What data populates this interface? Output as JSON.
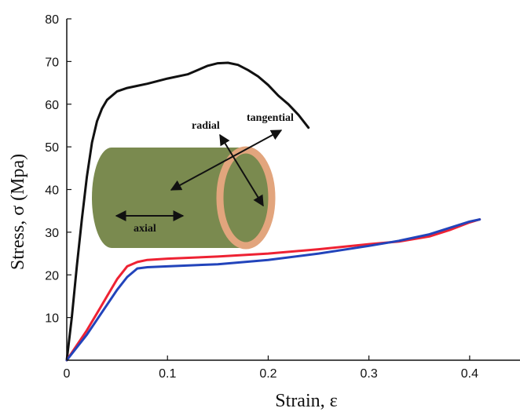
{
  "chart_data": {
    "type": "line",
    "xlabel": "Strain, ε",
    "ylabel": "Stress, σ (Mpa)",
    "xlim": [
      0,
      0.45
    ],
    "ylim": [
      0,
      80
    ],
    "x_ticks": [
      "0",
      "0.1",
      "0.2",
      "0.3",
      "0.4"
    ],
    "x_tick_values": [
      0,
      0.1,
      0.2,
      0.3,
      0.4
    ],
    "y_ticks": [
      "10",
      "20",
      "30",
      "40",
      "50",
      "60",
      "70",
      "80"
    ],
    "y_tick_values": [
      10,
      20,
      30,
      40,
      50,
      60,
      70,
      80
    ],
    "grid": false,
    "legend": "none",
    "series": [
      {
        "color": "#111111",
        "points": [
          [
            0,
            0
          ],
          [
            0.005,
            10
          ],
          [
            0.01,
            22
          ],
          [
            0.015,
            33
          ],
          [
            0.02,
            43
          ],
          [
            0.025,
            51
          ],
          [
            0.03,
            56
          ],
          [
            0.035,
            59
          ],
          [
            0.04,
            61
          ],
          [
            0.05,
            63
          ],
          [
            0.06,
            63.8
          ],
          [
            0.07,
            64.3
          ],
          [
            0.08,
            64.8
          ],
          [
            0.1,
            66
          ],
          [
            0.12,
            67
          ],
          [
            0.14,
            69
          ],
          [
            0.15,
            69.6
          ],
          [
            0.16,
            69.7
          ],
          [
            0.17,
            69.2
          ],
          [
            0.18,
            68
          ],
          [
            0.19,
            66.5
          ],
          [
            0.2,
            64.5
          ],
          [
            0.21,
            62
          ],
          [
            0.22,
            60
          ],
          [
            0.23,
            57.5
          ],
          [
            0.24,
            54.5
          ]
        ]
      },
      {
        "color": "#ee2233",
        "points": [
          [
            0,
            0
          ],
          [
            0.01,
            3.5
          ],
          [
            0.02,
            7
          ],
          [
            0.03,
            11
          ],
          [
            0.04,
            15
          ],
          [
            0.05,
            19
          ],
          [
            0.06,
            22
          ],
          [
            0.07,
            23
          ],
          [
            0.08,
            23.5
          ],
          [
            0.1,
            23.8
          ],
          [
            0.15,
            24.3
          ],
          [
            0.2,
            25
          ],
          [
            0.25,
            26
          ],
          [
            0.3,
            27.2
          ],
          [
            0.33,
            27.8
          ],
          [
            0.36,
            29
          ],
          [
            0.38,
            30.5
          ],
          [
            0.4,
            32.3
          ],
          [
            0.41,
            33
          ]
        ]
      },
      {
        "color": "#2244bb",
        "points": [
          [
            0,
            0
          ],
          [
            0.01,
            3
          ],
          [
            0.02,
            6
          ],
          [
            0.03,
            9.5
          ],
          [
            0.04,
            13
          ],
          [
            0.05,
            16.5
          ],
          [
            0.06,
            19.5
          ],
          [
            0.07,
            21.5
          ],
          [
            0.08,
            21.8
          ],
          [
            0.1,
            22
          ],
          [
            0.15,
            22.5
          ],
          [
            0.2,
            23.5
          ],
          [
            0.25,
            25
          ],
          [
            0.3,
            26.8
          ],
          [
            0.33,
            28
          ],
          [
            0.36,
            29.5
          ],
          [
            0.38,
            31
          ],
          [
            0.4,
            32.5
          ],
          [
            0.41,
            33
          ]
        ]
      }
    ],
    "annotations": {
      "radial": "radial",
      "tangential": "tangential",
      "axial": "axial"
    },
    "cylinder_colors": {
      "body": "#7a8a4f",
      "ring": "#e2a57d"
    }
  }
}
